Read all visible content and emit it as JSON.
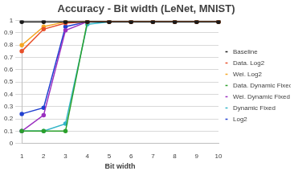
{
  "chart_data": {
    "type": "line",
    "title": "Accuracy - Bit width (LeNet, MNIST)",
    "x_label": "Bit width",
    "categories": [
      1,
      2,
      3,
      4,
      5,
      6,
      7,
      8,
      9,
      10
    ],
    "series": [
      {
        "name": "Baseline",
        "color": "#1a1a1a",
        "values": [
          0.99,
          0.99,
          0.99,
          0.99,
          0.99,
          0.99,
          0.99,
          0.99,
          0.99,
          0.99
        ]
      },
      {
        "name": "Data. Log2",
        "color": "#e8502a",
        "values": [
          0.75,
          0.93,
          0.98,
          0.99,
          0.99,
          0.99,
          0.99,
          0.99,
          0.99,
          0.99
        ]
      },
      {
        "name": "Wei. Log2",
        "color": "#f5a623",
        "values": [
          0.8,
          0.95,
          0.99,
          0.99,
          0.99,
          0.99,
          0.99,
          0.99,
          0.99,
          0.99
        ]
      },
      {
        "name": "Data. Dynamic Fixed",
        "color": "#2ca02c",
        "values": [
          0.1,
          0.1,
          0.1,
          0.99,
          0.99,
          0.99,
          0.99,
          0.99,
          0.99,
          0.99
        ]
      },
      {
        "name": "Wei. Dynamic Fixed",
        "color": "#9b30c0",
        "values": [
          0.1,
          0.23,
          0.92,
          0.99,
          0.99,
          0.99,
          0.99,
          0.99,
          0.99,
          0.99
        ]
      },
      {
        "name": "Dynamic Fixed",
        "color": "#33b5c8",
        "values": [
          0.1,
          0.1,
          0.16,
          0.97,
          0.99,
          0.99,
          0.99,
          0.99,
          0.99,
          0.99
        ]
      },
      {
        "name": "Log2",
        "color": "#2040d0",
        "values": [
          0.24,
          0.29,
          0.95,
          0.99,
          0.99,
          0.99,
          0.99,
          0.99,
          0.99,
          0.99
        ]
      }
    ],
    "ylim": [
      0,
      1
    ],
    "yticks": [
      0,
      0.1,
      0.2,
      0.3,
      0.4,
      0.5,
      0.6,
      0.7,
      0.8,
      0.9,
      1
    ],
    "grid": true,
    "legend": "right",
    "marker": "circle"
  }
}
